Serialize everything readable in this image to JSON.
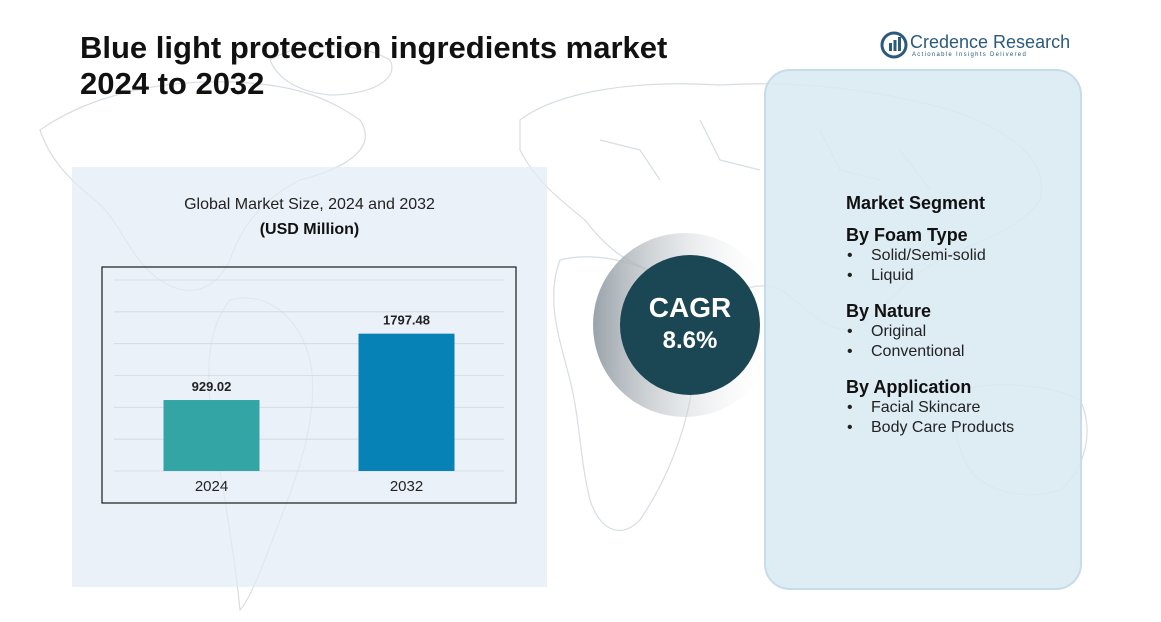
{
  "title_line1": "Blue light protection ingredients market",
  "title_line2": "2024  to 2032",
  "brand": {
    "name": "Credence Research",
    "tagline": "Actionable Insights Delivered",
    "color": "#2b5a7c"
  },
  "chart_data": {
    "type": "bar",
    "title": "Global Market Size, 2024 and 2032",
    "unit": "(USD Million)",
    "categories": [
      "2024",
      "2032"
    ],
    "values": [
      929.02,
      1797.48
    ],
    "value_labels": [
      "929.02",
      "1797.48"
    ],
    "colors": [
      "#33a5a5",
      "#0782b6"
    ],
    "ylim": [
      0,
      2500
    ],
    "grid": true,
    "legend": "none"
  },
  "cagr": {
    "label": "CAGR",
    "value": "8.6%",
    "color": "#1b4654"
  },
  "segments": {
    "heading": "Market Segment",
    "groups": [
      {
        "title": "By Foam Type",
        "items": [
          "Solid/Semi-solid",
          "Liquid"
        ]
      },
      {
        "title": "By Nature",
        "items": [
          "Original",
          "Conventional"
        ]
      },
      {
        "title": "By Application",
        "items": [
          "Facial Skincare",
          "Body Care Products"
        ]
      }
    ]
  }
}
